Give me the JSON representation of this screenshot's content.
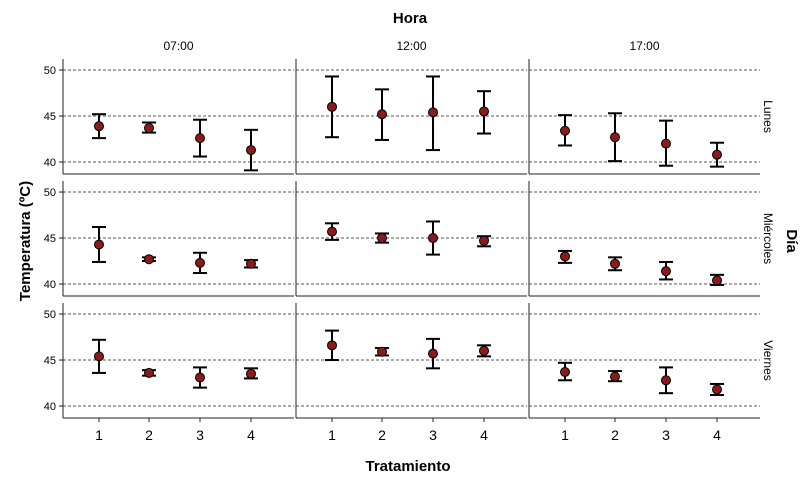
{
  "chart_data": {
    "type": "scatter",
    "title": "Hora",
    "xlabel": "Tratamiento",
    "ylabel": "Temperatura (ºC)",
    "facet_row_title": "Día",
    "col_labels": [
      "07:00",
      "12:00",
      "17:00"
    ],
    "row_labels": [
      "Lunes",
      "Miércoles",
      "Viernes"
    ],
    "categories": [
      "1",
      "2",
      "3",
      "4"
    ],
    "y_ticks": [
      40,
      45,
      50
    ],
    "ylim": [
      38.7,
      51.2
    ],
    "grid": true,
    "panels": [
      [
        {
          "mean": [
            43.9,
            43.7,
            42.6,
            41.3
          ],
          "low": [
            42.6,
            43.2,
            40.6,
            39.1
          ],
          "high": [
            45.2,
            44.3,
            44.6,
            43.5
          ]
        },
        {
          "mean": [
            46.0,
            45.2,
            45.4,
            45.5
          ],
          "low": [
            42.7,
            42.4,
            41.3,
            43.1
          ],
          "high": [
            49.3,
            47.9,
            49.3,
            47.7
          ]
        },
        {
          "mean": [
            43.4,
            42.7,
            42.0,
            40.8
          ],
          "low": [
            41.8,
            40.1,
            39.6,
            39.5
          ],
          "high": [
            45.1,
            45.3,
            44.5,
            42.1
          ]
        }
      ],
      [
        {
          "mean": [
            44.3,
            42.7,
            42.3,
            42.2
          ],
          "low": [
            42.4,
            42.5,
            41.2,
            41.8
          ],
          "high": [
            46.2,
            42.9,
            43.4,
            42.6
          ]
        },
        {
          "mean": [
            45.7,
            45.0,
            45.0,
            44.7
          ],
          "low": [
            44.8,
            44.5,
            43.2,
            44.1
          ],
          "high": [
            46.6,
            45.5,
            46.8,
            45.2
          ]
        },
        {
          "mean": [
            43.0,
            42.2,
            41.4,
            40.4
          ],
          "low": [
            42.3,
            41.5,
            40.5,
            39.9
          ],
          "high": [
            43.6,
            42.9,
            42.4,
            41.0
          ]
        }
      ],
      [
        {
          "mean": [
            45.4,
            43.6,
            43.1,
            43.5
          ],
          "low": [
            43.6,
            43.3,
            42.0,
            43.0
          ],
          "high": [
            47.2,
            43.9,
            44.2,
            44.1
          ]
        },
        {
          "mean": [
            46.6,
            45.9,
            45.7,
            46.0
          ],
          "low": [
            45.0,
            45.5,
            44.1,
            45.4
          ],
          "high": [
            48.2,
            46.3,
            47.3,
            46.6
          ]
        },
        {
          "mean": [
            43.7,
            43.2,
            42.8,
            41.8
          ],
          "low": [
            42.8,
            42.7,
            41.4,
            41.2
          ],
          "high": [
            44.7,
            43.8,
            44.2,
            42.4
          ]
        }
      ]
    ]
  }
}
